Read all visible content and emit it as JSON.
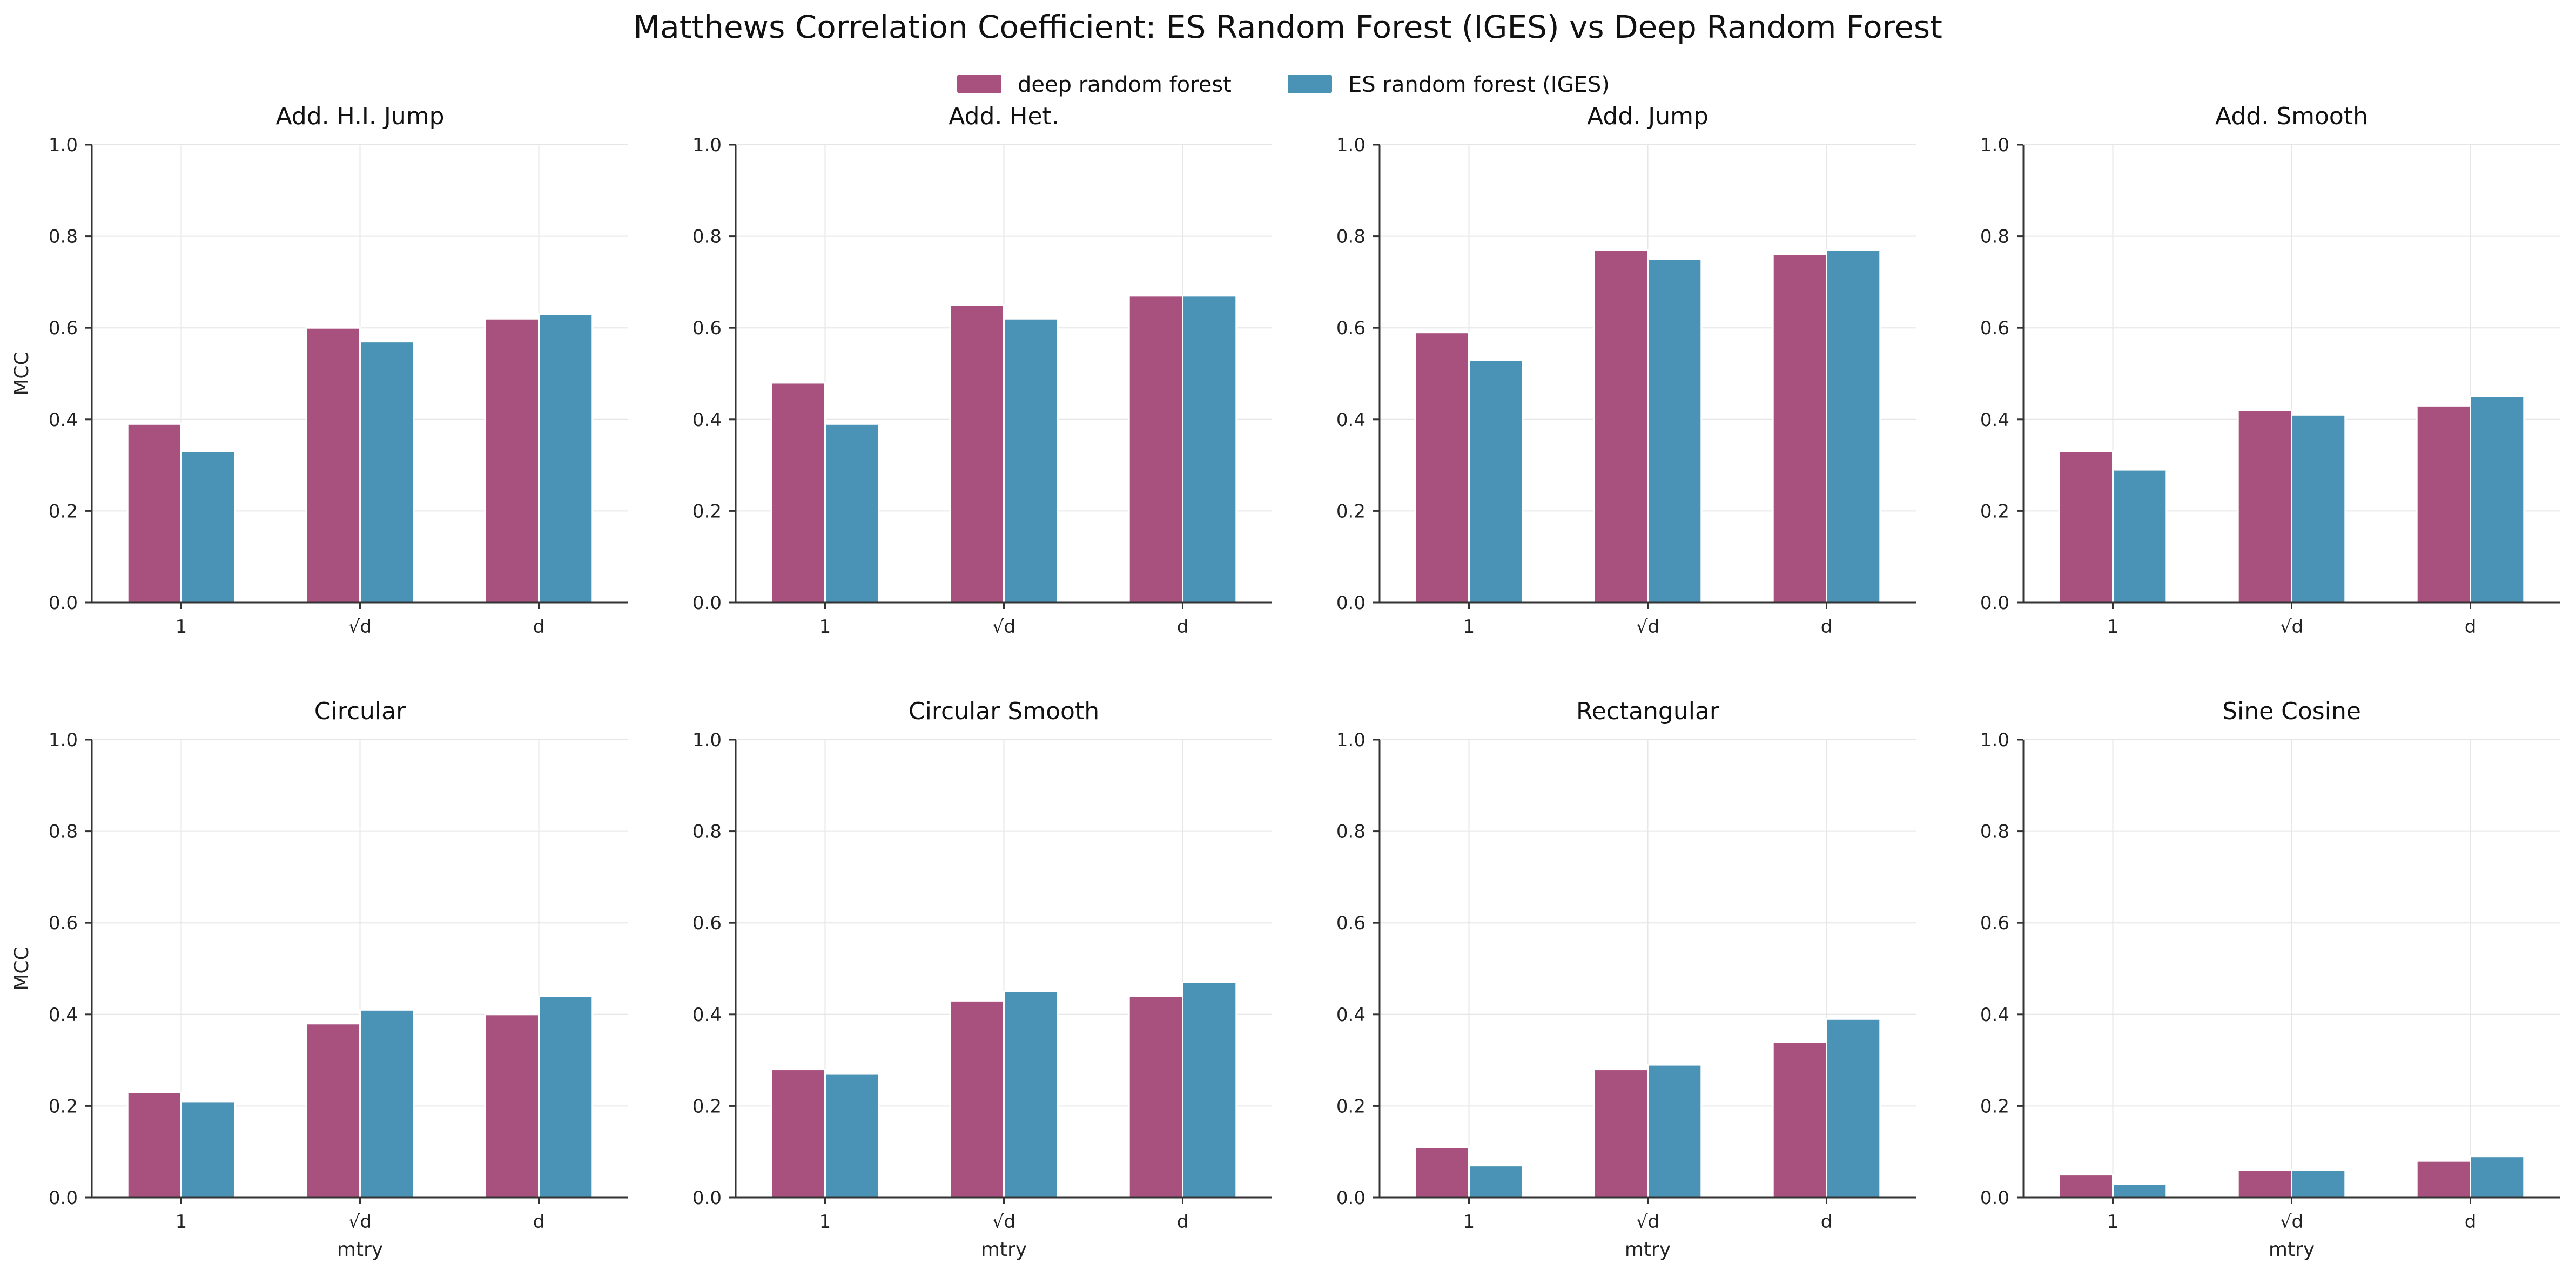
{
  "figure": {
    "title": "Matthews Correlation Coefficient: ES Random Forest (IGES) vs Deep Random Forest"
  },
  "legend": {
    "placement": "top-center",
    "items": [
      {
        "name": "deep random forest",
        "color": "#A8507E"
      },
      {
        "name": "ES random forest (IGES)",
        "color": "#4A93B6"
      }
    ]
  },
  "chart_data": [
    {
      "type": "bar",
      "title": "Add. H.I. Jump",
      "xlabel": "",
      "ylabel": "MCC",
      "ylim": [
        0,
        1.0
      ],
      "yticks": [
        "0.0",
        "0.2",
        "0.4",
        "0.6",
        "0.8",
        "1.0"
      ],
      "grid": true,
      "categories": [
        "1",
        "√d",
        "d"
      ],
      "series": [
        {
          "name": "deep random forest",
          "values": [
            0.39,
            0.6,
            0.62
          ]
        },
        {
          "name": "ES random forest (IGES)",
          "values": [
            0.33,
            0.57,
            0.63
          ]
        }
      ]
    },
    {
      "type": "bar",
      "title": "Add. Het.",
      "xlabel": "",
      "ylabel": "",
      "ylim": [
        0,
        1.0
      ],
      "yticks": [
        "0.0",
        "0.2",
        "0.4",
        "0.6",
        "0.8",
        "1.0"
      ],
      "grid": true,
      "categories": [
        "1",
        "√d",
        "d"
      ],
      "series": [
        {
          "name": "deep random forest",
          "values": [
            0.48,
            0.65,
            0.67
          ]
        },
        {
          "name": "ES random forest (IGES)",
          "values": [
            0.39,
            0.62,
            0.67
          ]
        }
      ]
    },
    {
      "type": "bar",
      "title": "Add. Jump",
      "xlabel": "",
      "ylabel": "",
      "ylim": [
        0,
        1.0
      ],
      "yticks": [
        "0.0",
        "0.2",
        "0.4",
        "0.6",
        "0.8",
        "1.0"
      ],
      "grid": true,
      "categories": [
        "1",
        "√d",
        "d"
      ],
      "series": [
        {
          "name": "deep random forest",
          "values": [
            0.59,
            0.77,
            0.76
          ]
        },
        {
          "name": "ES random forest (IGES)",
          "values": [
            0.53,
            0.75,
            0.77
          ]
        }
      ]
    },
    {
      "type": "bar",
      "title": "Add. Smooth",
      "xlabel": "",
      "ylabel": "",
      "ylim": [
        0,
        1.0
      ],
      "yticks": [
        "0.0",
        "0.2",
        "0.4",
        "0.6",
        "0.8",
        "1.0"
      ],
      "grid": true,
      "categories": [
        "1",
        "√d",
        "d"
      ],
      "series": [
        {
          "name": "deep random forest",
          "values": [
            0.33,
            0.42,
            0.43
          ]
        },
        {
          "name": "ES random forest (IGES)",
          "values": [
            0.29,
            0.41,
            0.45
          ]
        }
      ]
    },
    {
      "type": "bar",
      "title": "Circular",
      "xlabel": "mtry",
      "ylabel": "MCC",
      "ylim": [
        0,
        1.0
      ],
      "yticks": [
        "0.0",
        "0.2",
        "0.4",
        "0.6",
        "0.8",
        "1.0"
      ],
      "grid": true,
      "categories": [
        "1",
        "√d",
        "d"
      ],
      "series": [
        {
          "name": "deep random forest",
          "values": [
            0.23,
            0.38,
            0.4
          ]
        },
        {
          "name": "ES random forest (IGES)",
          "values": [
            0.21,
            0.41,
            0.44
          ]
        }
      ]
    },
    {
      "type": "bar",
      "title": "Circular Smooth",
      "xlabel": "mtry",
      "ylabel": "",
      "ylim": [
        0,
        1.0
      ],
      "yticks": [
        "0.0",
        "0.2",
        "0.4",
        "0.6",
        "0.8",
        "1.0"
      ],
      "grid": true,
      "categories": [
        "1",
        "√d",
        "d"
      ],
      "series": [
        {
          "name": "deep random forest",
          "values": [
            0.28,
            0.43,
            0.44
          ]
        },
        {
          "name": "ES random forest (IGES)",
          "values": [
            0.27,
            0.45,
            0.47
          ]
        }
      ]
    },
    {
      "type": "bar",
      "title": "Rectangular",
      "xlabel": "mtry",
      "ylabel": "",
      "ylim": [
        0,
        1.0
      ],
      "yticks": [
        "0.0",
        "0.2",
        "0.4",
        "0.6",
        "0.8",
        "1.0"
      ],
      "grid": true,
      "categories": [
        "1",
        "√d",
        "d"
      ],
      "series": [
        {
          "name": "deep random forest",
          "values": [
            0.11,
            0.28,
            0.34
          ]
        },
        {
          "name": "ES random forest (IGES)",
          "values": [
            0.07,
            0.29,
            0.39
          ]
        }
      ]
    },
    {
      "type": "bar",
      "title": "Sine Cosine",
      "xlabel": "mtry",
      "ylabel": "",
      "ylim": [
        0,
        1.0
      ],
      "yticks": [
        "0.0",
        "0.2",
        "0.4",
        "0.6",
        "0.8",
        "1.0"
      ],
      "grid": true,
      "categories": [
        "1",
        "√d",
        "d"
      ],
      "series": [
        {
          "name": "deep random forest",
          "values": [
            0.05,
            0.06,
            0.08
          ]
        },
        {
          "name": "ES random forest (IGES)",
          "values": [
            0.03,
            0.06,
            0.09
          ]
        }
      ]
    }
  ]
}
